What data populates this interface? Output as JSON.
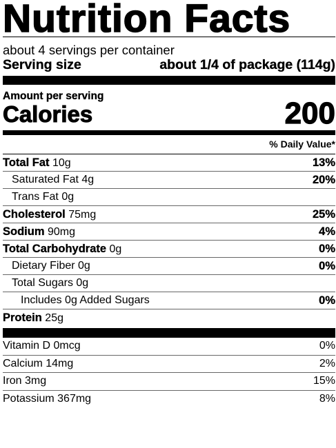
{
  "title": "Nutrition Facts",
  "servings_per_container": "about 4 servings per container",
  "serving_size": {
    "label": "Serving size",
    "value": "about 1/4 of package (114g)"
  },
  "amount_per_serving": "Amount per serving",
  "calories": {
    "label": "Calories",
    "value": "200"
  },
  "daily_value_header": "% Daily Value*",
  "nutrients": [
    {
      "name": "Total Fat",
      "amount": "10g",
      "dv": "13%"
    },
    {
      "name": "Saturated Fat",
      "amount": "4g",
      "dv": "20%"
    },
    {
      "name": "Trans Fat",
      "amount": "0g",
      "dv": ""
    },
    {
      "name": "Cholesterol",
      "amount": "75mg",
      "dv": "25%"
    },
    {
      "name": "Sodium",
      "amount": "90mg",
      "dv": "4%"
    },
    {
      "name": "Total Carbohydrate",
      "amount": "0g",
      "dv": "0%"
    },
    {
      "name": "Dietary Fiber",
      "amount": "0g",
      "dv": "0%"
    },
    {
      "name": "Total Sugars",
      "amount": "0g",
      "dv": ""
    },
    {
      "name": "Includes 0g Added Sugars",
      "amount": "",
      "dv": "0%"
    }
  ],
  "protein": {
    "name": "Protein",
    "amount": "25g"
  },
  "vitamins": [
    {
      "name": "Vitamin D",
      "amount": "0mcg",
      "dv": "0%"
    },
    {
      "name": "Calcium",
      "amount": "14mg",
      "dv": "2%"
    },
    {
      "name": "Iron",
      "amount": "3mg",
      "dv": "15%"
    },
    {
      "name": "Potassium",
      "amount": "367mg",
      "dv": "8%"
    }
  ]
}
